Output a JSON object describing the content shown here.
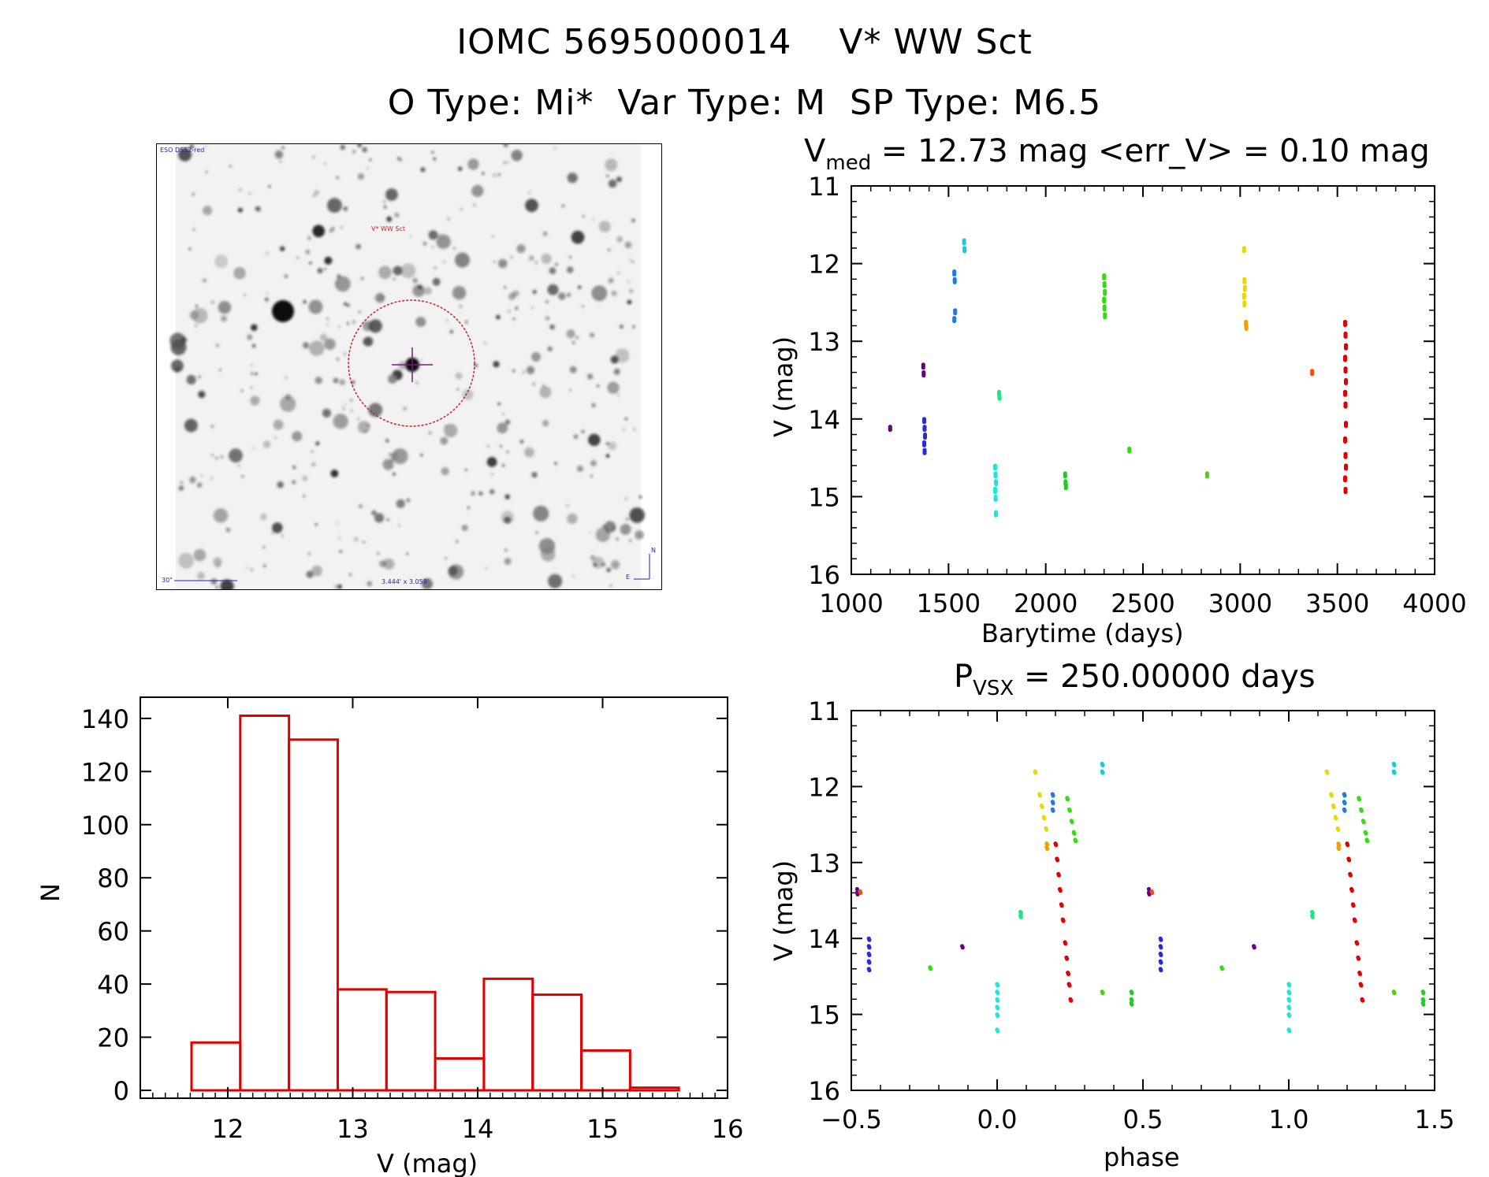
{
  "header": {
    "line1": "IOMC 5695000014    V* WW Sct",
    "line2": "O Type: Mi*  Var Type: M  SP Type: M6.5"
  },
  "finder": {
    "survey_label": "ESO DSS2-red",
    "target_label": "V* WW Sct",
    "scale_label": "30\"",
    "fov_label": "3.444' x 3.058'",
    "compass_n": "N",
    "compass_e": "E",
    "colors": {
      "circle": "#cc2222",
      "crosshair": "#7a1a7a",
      "labels": "#2222aa"
    }
  },
  "chart_data": [
    {
      "type": "scatter",
      "id": "lightcurve",
      "title_main": "V",
      "title_sub": "med",
      "title_rest": " = 12.73 mag <err_V> = 0.10 mag",
      "xlabel": "Barytime (days)",
      "ylabel": "V (mag)",
      "xlim": [
        1000,
        4000
      ],
      "ylim": [
        16,
        11
      ],
      "xticks": [
        "1000",
        "1500",
        "2000",
        "2500",
        "3000",
        "3500",
        "4000"
      ],
      "yticks": [
        "11",
        "12",
        "13",
        "14",
        "15",
        "16"
      ],
      "groups": [
        {
          "color": "#6a0080",
          "x": 1200,
          "y": [
            14.1
          ]
        },
        {
          "color": "#6a0080",
          "x": 1370,
          "y": [
            13.3,
            13.4
          ]
        },
        {
          "color": "#2a2ad8",
          "x": 1375,
          "y": [
            14.0,
            14.1,
            14.2,
            14.3,
            14.4
          ]
        },
        {
          "color": "#1e7ae8",
          "x": 1530,
          "y": [
            12.1,
            12.2,
            12.6,
            12.7
          ]
        },
        {
          "color": "#19c8e8",
          "x": 1580,
          "y": [
            11.7,
            11.8
          ]
        },
        {
          "color": "#19e8e0",
          "x": 1740,
          "y": [
            14.6,
            14.7,
            14.8,
            14.9,
            15.0,
            15.2
          ]
        },
        {
          "color": "#19e880",
          "x": 1760,
          "y": [
            13.65,
            13.7
          ]
        },
        {
          "color": "#22cc22",
          "x": 2100,
          "y": [
            14.7,
            14.8,
            14.85
          ]
        },
        {
          "color": "#33dd11",
          "x": 2300,
          "y": [
            12.15,
            12.25,
            12.35,
            12.45,
            12.55,
            12.65
          ]
        },
        {
          "color": "#33dd11",
          "x": 2430,
          "y": [
            14.38
          ]
        },
        {
          "color": "#55cc11",
          "x": 2830,
          "y": [
            14.7
          ]
        },
        {
          "color": "#e8d80a",
          "x": 3020,
          "y": [
            11.8,
            12.2,
            12.3,
            12.4,
            12.5
          ]
        },
        {
          "color": "#f0a000",
          "x": 3030,
          "y": [
            12.75,
            12.8
          ]
        },
        {
          "color": "#f05010",
          "x": 3370,
          "y": [
            13.38
          ]
        },
        {
          "color": "#e00000",
          "x": 3540,
          "y": [
            12.75,
            12.9,
            13.05,
            13.2,
            13.35,
            13.5,
            13.65,
            13.8,
            14.05,
            14.25,
            14.45,
            14.6,
            14.75,
            14.9
          ]
        }
      ]
    },
    {
      "type": "scatter",
      "id": "phased",
      "title_main": "P",
      "title_sub": "VSX",
      "title_rest": " = 250.00000 days",
      "xlabel": "phase",
      "ylabel": "V (mag)",
      "xlim": [
        -0.5,
        1.5
      ],
      "ylim": [
        16,
        11
      ],
      "xticks": [
        "−0.5",
        "0.0",
        "0.5",
        "1.0",
        "1.5"
      ],
      "yticks": [
        "11",
        "12",
        "13",
        "14",
        "15",
        "16"
      ],
      "period_points": [
        {
          "color": "#6a0080",
          "p": -0.12,
          "y": [
            14.1
          ]
        },
        {
          "color": "#6a0080",
          "p": 0.52,
          "y": [
            13.35,
            13.4
          ]
        },
        {
          "color": "#2a2ad8",
          "p": -0.44,
          "y": [
            14.0,
            14.1,
            14.2,
            14.3,
            14.4
          ]
        },
        {
          "color": "#1e7ae8",
          "p": 0.19,
          "y": [
            12.1,
            12.2,
            12.3
          ]
        },
        {
          "color": "#19c8e8",
          "p": 0.36,
          "y": [
            11.7,
            11.8
          ]
        },
        {
          "color": "#19e8e0",
          "p": 0.0,
          "y": [
            14.6,
            14.7,
            14.8,
            14.9,
            15.0,
            15.2
          ]
        },
        {
          "color": "#19e880",
          "p": 0.08,
          "y": [
            13.65,
            13.7
          ]
        },
        {
          "color": "#22cc22",
          "p": 0.46,
          "y": [
            14.7,
            14.8,
            14.85
          ]
        },
        {
          "color": "#33dd11",
          "p": 0.24,
          "y": [
            12.15,
            12.3,
            12.45,
            12.6,
            12.7
          ]
        },
        {
          "color": "#33dd11",
          "p": -0.23,
          "y": [
            14.38
          ]
        },
        {
          "color": "#55cc11",
          "p": 0.36,
          "y": [
            14.7
          ]
        },
        {
          "color": "#e8d80a",
          "p": 0.13,
          "y": [
            11.8,
            12.1,
            12.25,
            12.4,
            12.55
          ]
        },
        {
          "color": "#f0a000",
          "p": 0.17,
          "y": [
            12.75,
            12.8
          ]
        },
        {
          "color": "#f05010",
          "p": 0.53,
          "y": [
            13.38
          ]
        },
        {
          "color": "#e00000",
          "p": 0.2,
          "y": [
            12.75,
            12.95,
            13.15,
            13.35,
            13.55,
            13.75,
            14.05,
            14.25,
            14.45,
            14.6,
            14.8
          ]
        }
      ]
    },
    {
      "type": "bar",
      "id": "histogram",
      "xlabel": "V (mag)",
      "ylabel": "N",
      "xlim": [
        11.3,
        16
      ],
      "ylim": [
        0,
        145
      ],
      "xticks": [
        "12",
        "13",
        "14",
        "15",
        "16"
      ],
      "yticks": [
        "0",
        "20",
        "40",
        "60",
        "80",
        "100",
        "120",
        "140"
      ],
      "bin_edges": [
        11.71,
        12.1,
        12.49,
        12.88,
        13.27,
        13.66,
        14.05,
        14.44,
        14.83,
        15.22,
        15.61
      ],
      "values": [
        18,
        141,
        132,
        38,
        37,
        12,
        42,
        36,
        15,
        1
      ],
      "color": "#e00000"
    }
  ]
}
